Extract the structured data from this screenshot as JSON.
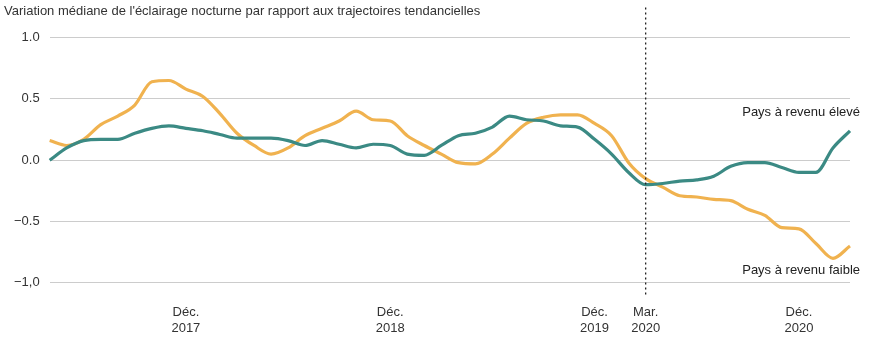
{
  "chart_data": {
    "type": "line",
    "title": "Variation médiane de l'éclairage nocturne par rapport aux trajectoires tendancielles",
    "categories": [
      null,
      null,
      null,
      null,
      null,
      null,
      null,
      null,
      "Déc. 2017",
      null,
      null,
      null,
      null,
      null,
      null,
      null,
      null,
      null,
      null,
      null,
      "Déc. 2018",
      null,
      null,
      null,
      null,
      null,
      null,
      null,
      null,
      null,
      null,
      null,
      "Déc. 2019",
      null,
      null,
      "Mar. 2020",
      null,
      null,
      null,
      null,
      null,
      null,
      null,
      null,
      "Déc. 2020",
      null,
      null,
      null
    ],
    "series": [
      {
        "name": "Pays à revenu élevé",
        "color": "#3b8a84",
        "values": [
          0.0,
          0.1,
          0.16,
          0.17,
          0.17,
          0.22,
          0.26,
          0.28,
          0.26,
          0.24,
          0.21,
          0.18,
          0.18,
          0.18,
          0.16,
          0.12,
          0.16,
          0.13,
          0.1,
          0.13,
          0.12,
          0.05,
          0.04,
          0.12,
          0.2,
          0.22,
          0.27,
          0.36,
          0.33,
          0.32,
          0.28,
          0.27,
          0.17,
          0.05,
          -0.1,
          -0.2,
          -0.19,
          -0.17,
          -0.16,
          -0.13,
          -0.05,
          -0.02,
          -0.02,
          -0.06,
          -0.1,
          -0.1,
          0.1,
          0.24
        ]
      },
      {
        "name": "Pays à revenu faible",
        "color": "#f0b24f",
        "values": [
          0.16,
          0.12,
          0.17,
          0.29,
          0.36,
          0.45,
          0.64,
          0.65,
          0.58,
          0.52,
          0.38,
          0.22,
          0.12,
          0.05,
          0.1,
          0.2,
          0.26,
          0.32,
          0.4,
          0.33,
          0.32,
          0.2,
          0.12,
          0.05,
          -0.02,
          -0.03,
          0.05,
          0.18,
          0.3,
          0.35,
          0.37,
          0.37,
          0.3,
          0.2,
          -0.02,
          -0.15,
          -0.22,
          -0.29,
          -0.3,
          -0.32,
          -0.33,
          -0.4,
          -0.45,
          -0.55,
          -0.56,
          -0.68,
          -0.8,
          -0.7
        ]
      }
    ],
    "ylim": [
      -1.0,
      1.0
    ],
    "yticks": [
      {
        "value": -1.0,
        "label": "−1,0"
      },
      {
        "value": -0.5,
        "label": "−0.5"
      },
      {
        "value": 0.0,
        "label": "0.0"
      },
      {
        "value": 0.5,
        "label": "0.5"
      },
      {
        "value": 1.0,
        "label": "1.0"
      }
    ],
    "grid": true,
    "annotations": [
      {
        "type": "vline",
        "x": "Mar. 2020",
        "line_style": "dotted"
      }
    ]
  }
}
